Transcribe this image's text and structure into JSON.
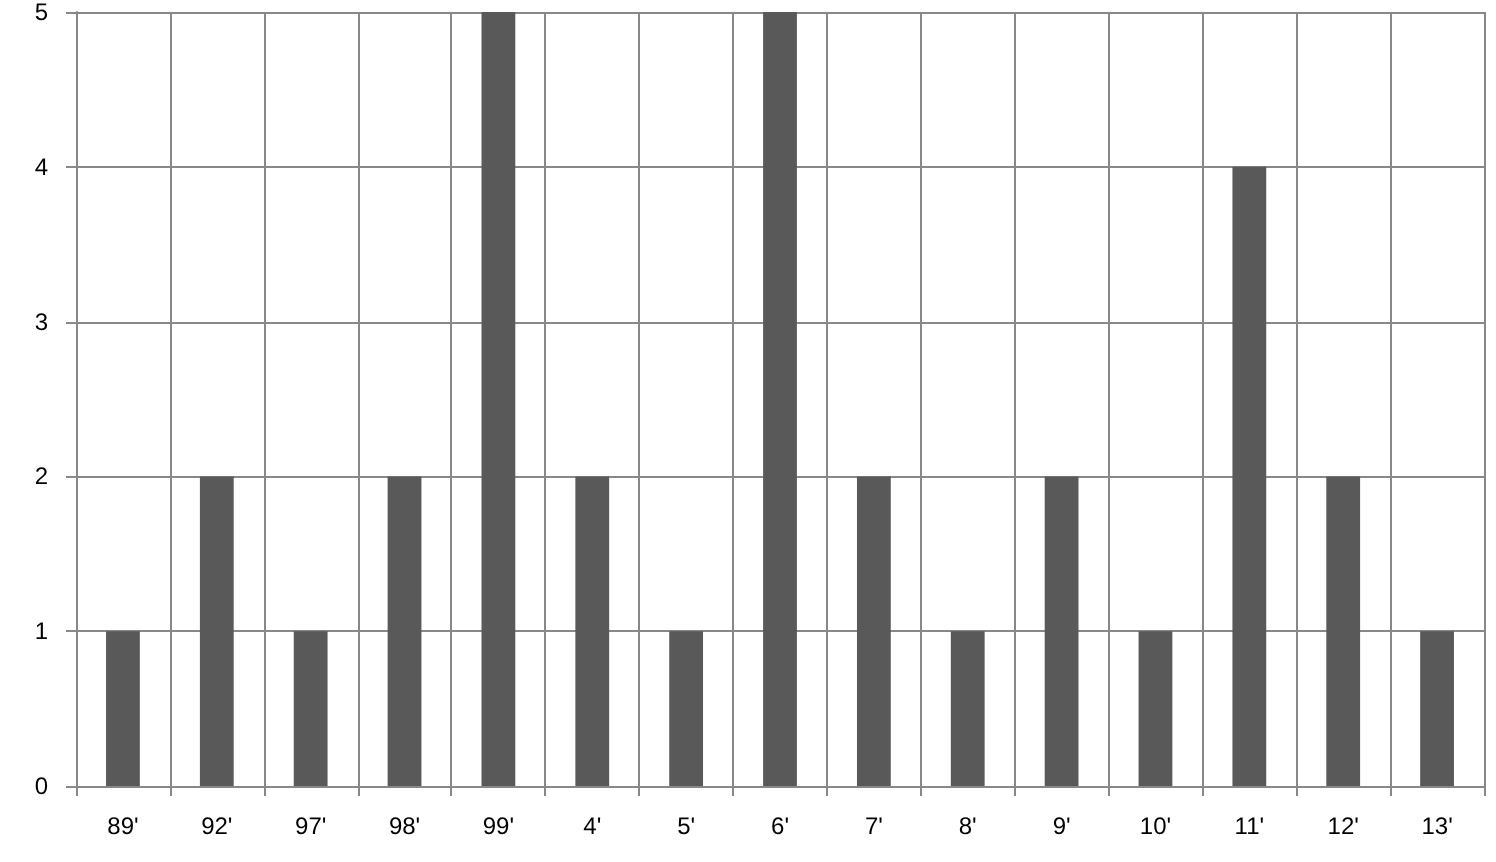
{
  "chart_data": {
    "type": "bar",
    "categories": [
      "89'",
      "92'",
      "97'",
      "98'",
      "99'",
      "4'",
      "5'",
      "6'",
      "7'",
      "8'",
      "9'",
      "10'",
      "11'",
      "12'",
      "13'"
    ],
    "values": [
      1,
      2,
      1,
      2,
      5,
      2,
      1,
      5,
      2,
      1,
      2,
      1,
      4,
      2,
      1
    ],
    "color": "#595959",
    "ylim": [
      0,
      5
    ],
    "yticks": [
      0,
      1,
      2,
      3,
      4,
      5
    ],
    "grid": true
  }
}
